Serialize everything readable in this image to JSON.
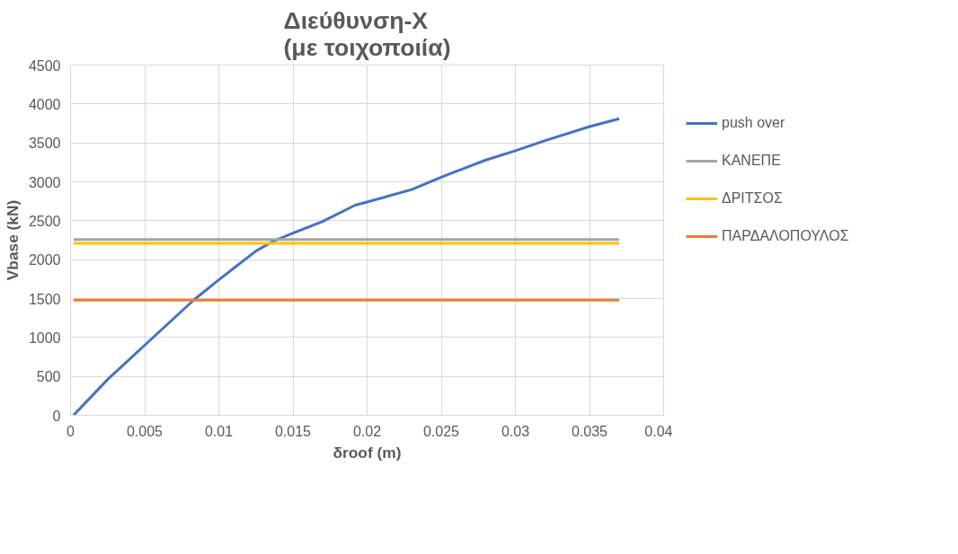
{
  "chart_data": {
    "type": "line",
    "title": "Διεύθυνση-Χ\n(με τοιχοποιία)",
    "xlabel": "δroof (m)",
    "ylabel": "Vbase (kN)",
    "series": [
      {
        "name": "push over",
        "color": "#4472c4",
        "x": [
          0.0002,
          0.0025,
          0.005,
          0.0083,
          0.01,
          0.011,
          0.0125,
          0.0136,
          0.015,
          0.017,
          0.0192,
          0.02,
          0.023,
          0.025,
          0.028,
          0.03,
          0.032,
          0.035,
          0.037
        ],
        "values": [
          0,
          460,
          900,
          1480,
          1740,
          1890,
          2110,
          2230,
          2340,
          2490,
          2700,
          2740,
          2900,
          3060,
          3280,
          3400,
          3530,
          3710,
          3810
        ]
      },
      {
        "name": "ΚΑΝΕΠΕ",
        "color": "#a5a5a5",
        "x": [
          0.0002,
          0.037
        ],
        "values": [
          2260,
          2260
        ]
      },
      {
        "name": "ΔΡΙΤΣΟΣ",
        "color": "#ffc000",
        "x": [
          0.0002,
          0.037
        ],
        "values": [
          2210,
          2210
        ]
      },
      {
        "name": "ΠΑΡΔΑΛΟΠΟΥΛΟΣ",
        "color": "#ed7d31",
        "x": [
          0.0002,
          0.037
        ],
        "values": [
          1480,
          1480
        ]
      }
    ],
    "xlim": [
      0,
      0.04
    ],
    "xticks": [
      0,
      0.005,
      0.01,
      0.015,
      0.02,
      0.025,
      0.03,
      0.035,
      0.04
    ],
    "ylim": [
      0,
      4500
    ],
    "yticks": [
      0,
      500,
      1000,
      1500,
      2000,
      2500,
      3000,
      3500,
      4000,
      4500
    ],
    "grid": true,
    "legend": "right",
    "marker": "none",
    "line_style": "solid"
  }
}
